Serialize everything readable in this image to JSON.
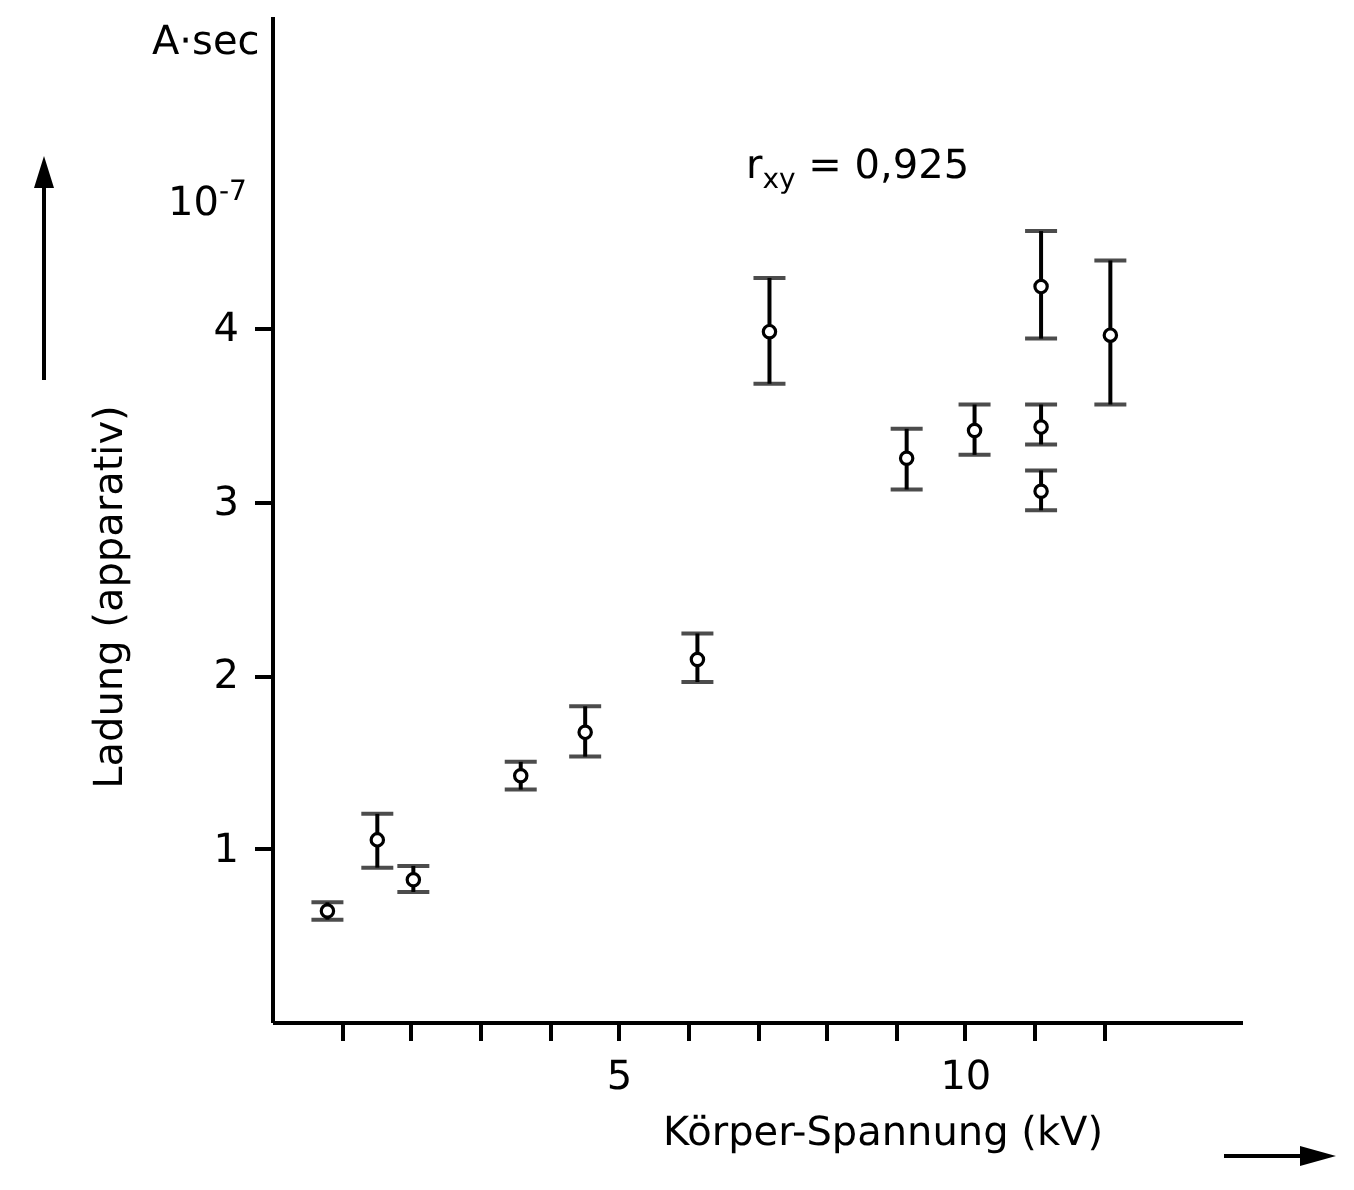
{
  "chart_data": {
    "type": "scatter",
    "xlabel": "Körper-Spannung (kV)",
    "ylabel": "Ladung (apparativ)",
    "annotations": [
      "A·sec",
      "10$^{-7}$",
      "r$_{xy}$  =  0,925"
    ],
    "x": [
      0.8,
      1.52,
      2.04,
      3.59,
      4.52,
      6.14,
      7.18,
      9.16,
      10.14,
      11.1,
      11.1,
      11.1,
      12.1
    ],
    "series": [
      {
        "color": "#000000",
        "values": [
          0.64,
          1.05,
          0.82,
          1.42,
          1.67,
          2.09,
          3.98,
          3.25,
          3.41,
          4.24,
          3.43,
          3.06,
          3.96
        ],
        "errors": [
          [
            0.59,
            0.69
          ],
          [
            0.89,
            1.2
          ],
          [
            0.75,
            0.9
          ],
          [
            1.34,
            1.5
          ],
          [
            1.53,
            1.82
          ],
          [
            1.96,
            2.24
          ],
          [
            3.68,
            4.29
          ],
          [
            3.07,
            3.42
          ],
          [
            3.27,
            3.56
          ],
          [
            3.94,
            4.56
          ],
          [
            3.33,
            3.56
          ],
          [
            2.95,
            3.18
          ],
          [
            3.56,
            4.39
          ]
        ]
      }
    ],
    "xlim": [
      0,
      14
    ],
    "ylim": [
      0,
      5.8
    ],
    "xticks": [
      {
        "value": 1,
        "label": null
      },
      {
        "value": 2,
        "label": null
      },
      {
        "value": 3,
        "label": null
      },
      {
        "value": 4,
        "label": null
      },
      5,
      {
        "value": 6,
        "label": null
      },
      {
        "value": 7,
        "label": null
      },
      {
        "value": 8,
        "label": null
      },
      {
        "value": 9,
        "label": null
      },
      10,
      {
        "value": 11,
        "label": null
      },
      {
        "value": 12,
        "label": null
      }
    ],
    "yticks": [
      1,
      2,
      3,
      4
    ],
    "marker": "circle",
    "grid": false
  }
}
